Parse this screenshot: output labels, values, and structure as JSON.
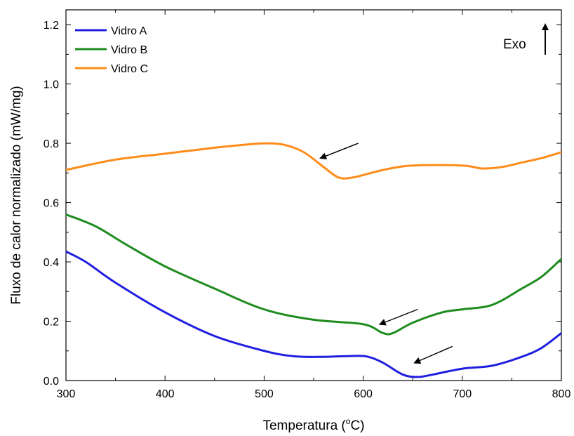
{
  "chart_data": {
    "type": "line",
    "title": "",
    "xlabel": "Temperatura (",
    "xlabel_sup": "o",
    "xlabel_suffix": "C)",
    "ylabel": "Fluxo de calor normalizado (mW/mg)",
    "xlim": [
      300,
      800
    ],
    "ylim": [
      0.0,
      1.25
    ],
    "xticks": [
      300,
      400,
      500,
      600,
      700,
      800
    ],
    "xtick_labels": [
      "300",
      "400",
      "500",
      "600",
      "700",
      "800"
    ],
    "yticks": [
      0.0,
      0.2,
      0.4,
      0.6,
      0.8,
      1.0,
      1.2
    ],
    "ytick_labels": [
      "0.0",
      "0.2",
      "0.4",
      "0.6",
      "0.8",
      "1.0",
      "1.2"
    ],
    "grid": false,
    "legend_position": "top-left",
    "annotation": "Exo",
    "series": [
      {
        "name": "Vidro A",
        "color": "#1f1fe0",
        "x": [
          300,
          320,
          350,
          400,
          450,
          500,
          530,
          560,
          590,
          605,
          620,
          640,
          655,
          670,
          700,
          730,
          760,
          780,
          800
        ],
        "y": [
          0.435,
          0.4,
          0.33,
          0.23,
          0.15,
          0.1,
          0.082,
          0.08,
          0.083,
          0.08,
          0.06,
          0.02,
          0.012,
          0.02,
          0.04,
          0.05,
          0.08,
          0.11,
          0.16
        ]
      },
      {
        "name": "Vidro B",
        "color": "#1e8c1e",
        "x": [
          300,
          330,
          360,
          400,
          450,
          500,
          550,
          600,
          620,
          630,
          650,
          680,
          700,
          730,
          760,
          780,
          800
        ],
        "y": [
          0.56,
          0.52,
          0.46,
          0.385,
          0.31,
          0.24,
          0.205,
          0.19,
          0.16,
          0.16,
          0.195,
          0.23,
          0.24,
          0.255,
          0.31,
          0.35,
          0.41
        ]
      },
      {
        "name": "Vidro C",
        "color": "#ff8c1a",
        "x": [
          300,
          350,
          400,
          450,
          480,
          500,
          520,
          540,
          560,
          575,
          590,
          620,
          650,
          700,
          720,
          740,
          760,
          780,
          800
        ],
        "y": [
          0.71,
          0.745,
          0.765,
          0.785,
          0.795,
          0.8,
          0.795,
          0.77,
          0.72,
          0.685,
          0.685,
          0.71,
          0.725,
          0.725,
          0.715,
          0.72,
          0.735,
          0.75,
          0.77
        ]
      }
    ],
    "arrows": [
      {
        "from": [
          595,
          0.8
        ],
        "to": [
          557,
          0.75
        ]
      },
      {
        "from": [
          655,
          0.24
        ],
        "to": [
          617,
          0.19
        ]
      },
      {
        "from": [
          690,
          0.115
        ],
        "to": [
          652,
          0.06
        ]
      }
    ]
  }
}
